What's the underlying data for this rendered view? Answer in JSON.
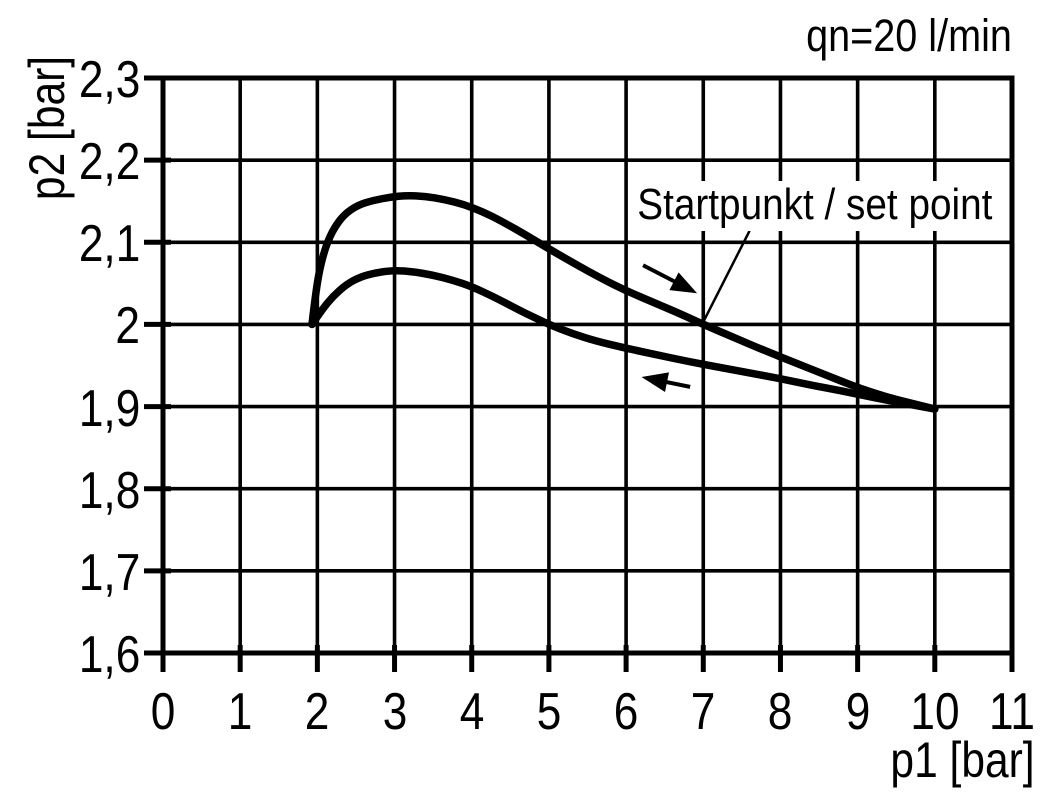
{
  "chart_data": {
    "type": "line",
    "title": "",
    "xlabel": "p1 [bar]",
    "ylabel": "p2 [bar]",
    "xlim": [
      0,
      11
    ],
    "ylim": [
      1.6,
      2.3
    ],
    "grid": true,
    "legend_position": "none",
    "annotation": "qn=20 l/min",
    "x_ticks": [
      0,
      1,
      2,
      3,
      4,
      5,
      6,
      7,
      8,
      9,
      10,
      11
    ],
    "x_tick_labels": [
      "0",
      "1",
      "2",
      "3",
      "4",
      "5",
      "6",
      "7",
      "8",
      "9",
      "10",
      "11"
    ],
    "y_ticks": [
      1.6,
      1.7,
      1.8,
      1.9,
      2.0,
      2.1,
      2.2,
      2.3
    ],
    "y_tick_labels": [
      "1,6",
      "1,7",
      "1,8",
      "1,9",
      "2",
      "2,1",
      "2,2",
      "2,3"
    ],
    "colors": {
      "line": "#000000",
      "background": "#ffffff"
    },
    "series": [
      {
        "name": "upper_curve",
        "points": [
          [
            1.93,
            2.0
          ],
          [
            1.98,
            2.04
          ],
          [
            2.04,
            2.072
          ],
          [
            2.12,
            2.098
          ],
          [
            2.22,
            2.118
          ],
          [
            2.35,
            2.134
          ],
          [
            2.52,
            2.145
          ],
          [
            2.72,
            2.151
          ],
          [
            2.95,
            2.155
          ],
          [
            3.15,
            2.157
          ],
          [
            3.4,
            2.156
          ],
          [
            3.65,
            2.152
          ],
          [
            3.9,
            2.146
          ],
          [
            4.15,
            2.137
          ],
          [
            4.4,
            2.125
          ],
          [
            4.7,
            2.109
          ],
          [
            5.0,
            2.092
          ],
          [
            5.35,
            2.073
          ],
          [
            5.7,
            2.055
          ],
          [
            6.0,
            2.041
          ],
          [
            6.35,
            2.027
          ],
          [
            6.7,
            2.013
          ],
          [
            7.0,
            2.0
          ],
          [
            7.4,
            1.984
          ],
          [
            7.8,
            1.968
          ],
          [
            8.2,
            1.953
          ],
          [
            8.6,
            1.938
          ],
          [
            9.0,
            1.923
          ],
          [
            9.4,
            1.911
          ],
          [
            9.7,
            1.904
          ],
          [
            10.0,
            1.897
          ]
        ]
      },
      {
        "name": "lower_curve",
        "points": [
          [
            1.93,
            2.0
          ],
          [
            2.06,
            2.018
          ],
          [
            2.2,
            2.034
          ],
          [
            2.38,
            2.049
          ],
          [
            2.56,
            2.058
          ],
          [
            2.76,
            2.063
          ],
          [
            3.0,
            2.066
          ],
          [
            3.25,
            2.064
          ],
          [
            3.5,
            2.06
          ],
          [
            3.75,
            2.054
          ],
          [
            4.0,
            2.046
          ],
          [
            4.3,
            2.033
          ],
          [
            4.6,
            2.018
          ],
          [
            4.8,
            2.009
          ],
          [
            5.0,
            2.0
          ],
          [
            5.3,
            1.989
          ],
          [
            5.6,
            1.98
          ],
          [
            6.0,
            1.971
          ],
          [
            6.4,
            1.963
          ],
          [
            6.8,
            1.955
          ],
          [
            7.2,
            1.948
          ],
          [
            7.6,
            1.941
          ],
          [
            8.0,
            1.934
          ],
          [
            8.4,
            1.926
          ],
          [
            8.8,
            1.919
          ],
          [
            9.2,
            1.911
          ],
          [
            9.6,
            1.904
          ],
          [
            10.0,
            1.897
          ]
        ]
      }
    ],
    "set_point": {
      "label": "Startpunkt / set point",
      "x": 7.0,
      "y": 2.0
    },
    "leader_line": {
      "from": [
        7.6,
        2.114
      ],
      "to": [
        7.0,
        2.003
      ]
    },
    "arrows": [
      {
        "direction": "right-down",
        "from": [
          6.22,
          2.072
        ],
        "to": [
          6.92,
          2.038
        ]
      },
      {
        "direction": "left-up",
        "from": [
          6.83,
          1.924
        ],
        "to": [
          6.2,
          1.936
        ]
      }
    ]
  }
}
